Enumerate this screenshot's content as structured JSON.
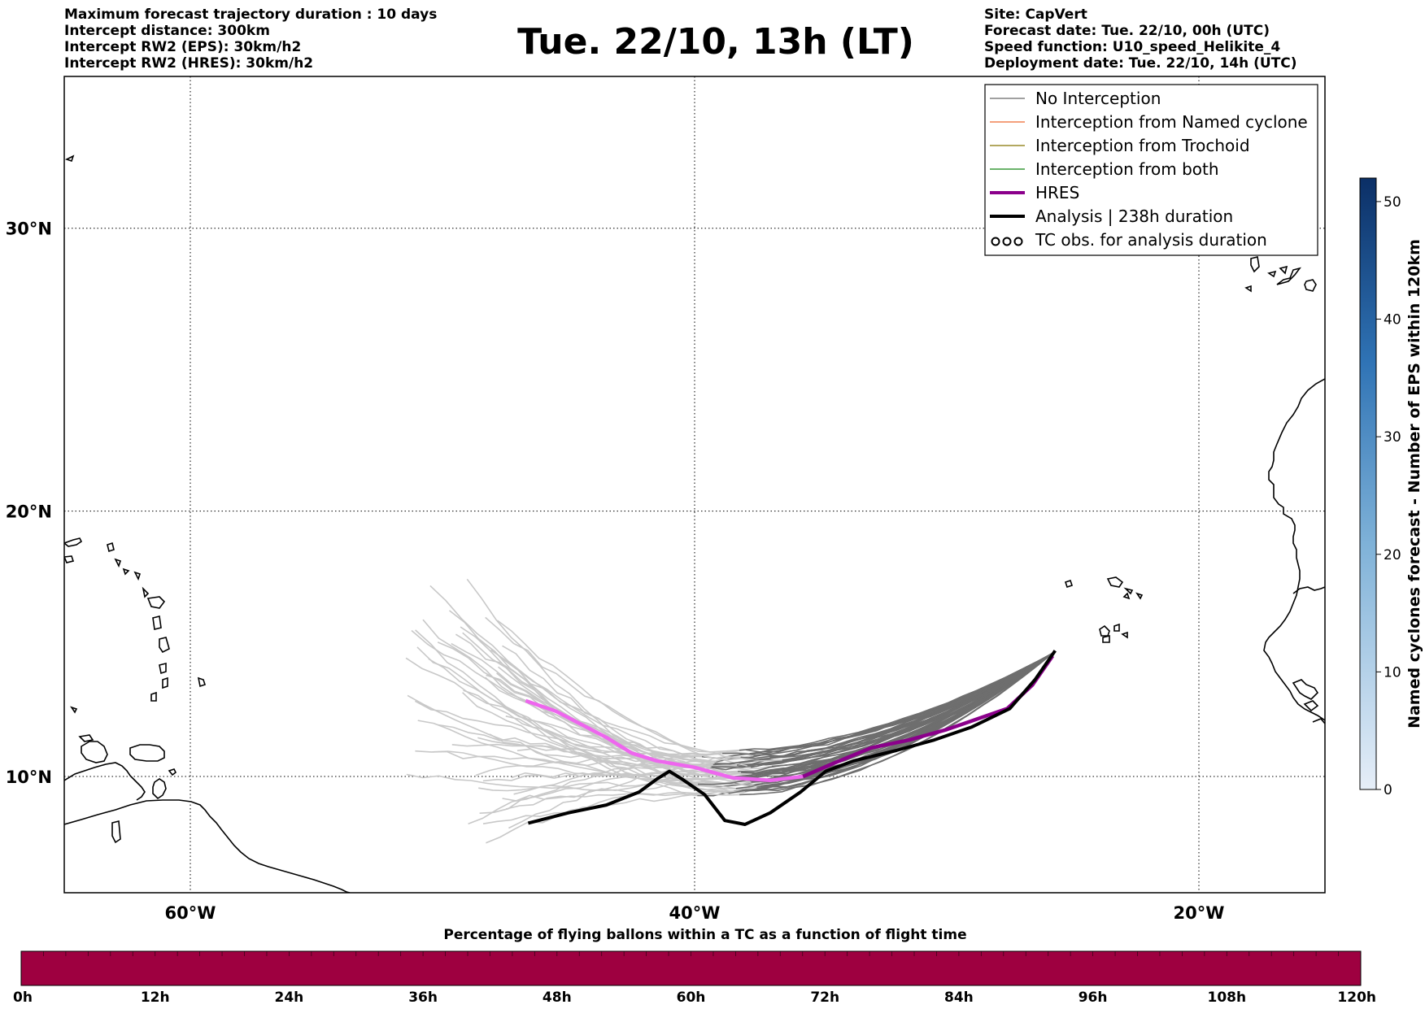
{
  "header": {
    "left_lines": [
      "Maximum forecast trajectory duration : 10 days",
      "Intercept distance: 300km",
      "Intercept RW2 (EPS):  30km/h2",
      "Intercept RW2 (HRES): 30km/h2"
    ],
    "title": "Tue. 22/10, 13h (LT)",
    "right_lines": [
      "Site: CapVert",
      "Forecast date: Tue. 22/10, 00h (UTC)",
      "Speed function: U10_speed_Helikite_4",
      "Deployment date: Tue. 22/10, 14h (UTC)"
    ]
  },
  "map": {
    "lon_range": [
      -65,
      -15
    ],
    "lat_range": [
      5.5,
      35
    ],
    "lat_ticks": [
      {
        "value": 30,
        "label": "30°N"
      },
      {
        "value": 20,
        "label": "20°N"
      },
      {
        "value": 10,
        "label": "10°N"
      }
    ],
    "lon_ticks": [
      {
        "value": -60,
        "label": "60°W"
      },
      {
        "value": -40,
        "label": "40°W"
      },
      {
        "value": -20,
        "label": "20°W"
      }
    ],
    "grid": true,
    "colors": {
      "coast": "#000000",
      "eps_light": "#c8c8c8",
      "eps_dark": "#6e6e6e",
      "hres_early": "#ee66ee",
      "hres_late": "#8b008b",
      "analysis": "#000000"
    }
  },
  "legend": {
    "placement": "top-right",
    "items": [
      {
        "label": "No Interception",
        "color": "#808080",
        "style": "thin"
      },
      {
        "label": "Interception from Named cyclone",
        "color": "#f08050",
        "style": "thin"
      },
      {
        "label": "Interception from Trochoid",
        "color": "#9a8c2c",
        "style": "thin"
      },
      {
        "label": "Interception from both",
        "color": "#3a9a3a",
        "style": "thin"
      },
      {
        "label": "HRES",
        "color": "#8b008b",
        "style": "thick"
      },
      {
        "label": "Analysis | 238h duration",
        "color": "#000000",
        "style": "thick"
      },
      {
        "label": "TC obs. for analysis duration",
        "color": "#000000",
        "style": "symbol"
      }
    ]
  },
  "right_colorbar": {
    "label": "Named cyclones forecast - Number of EPS within 120km",
    "range": [
      0,
      52
    ],
    "ticks": [
      0,
      10,
      20,
      30,
      40,
      50
    ],
    "color_low": "#e6eef8",
    "color_high": "#0b2f66"
  },
  "bottom_colorbar": {
    "title": "Percentage of flying ballons within a TC as a function of flight time",
    "range_hours": [
      0,
      120
    ],
    "ticks": [
      "0h",
      "12h",
      "24h",
      "36h",
      "48h",
      "60h",
      "72h",
      "84h",
      "96h",
      "108h",
      "120h"
    ],
    "fill_color": "#9e0040"
  },
  "tracks": {
    "hres": [
      [
        -25.8,
        14.6
      ],
      [
        -26.6,
        13.5
      ],
      [
        -27.6,
        12.6
      ],
      [
        -28.8,
        12.2
      ],
      [
        -30,
        11.8
      ],
      [
        -31.5,
        11.4
      ],
      [
        -33,
        11.1
      ],
      [
        -34.5,
        10.5
      ],
      [
        -35.7,
        10
      ],
      [
        -37,
        9.85
      ],
      [
        -38.5,
        9.95
      ],
      [
        -40,
        10.35
      ],
      [
        -41.5,
        10.6
      ],
      [
        -42.5,
        10.9
      ],
      [
        -43.5,
        11.5
      ],
      [
        -44.5,
        12
      ],
      [
        -45.5,
        12.5
      ],
      [
        -46.7,
        12.9
      ]
    ],
    "hres_color_split_lon": -35.7,
    "analysis": [
      [
        -25.7,
        14.8
      ],
      [
        -26.5,
        13.7
      ],
      [
        -27.5,
        12.6
      ],
      [
        -29,
        11.9
      ],
      [
        -30.5,
        11.4
      ],
      [
        -32,
        11
      ],
      [
        -33.7,
        10.6
      ],
      [
        -34.8,
        10.2
      ],
      [
        -35.8,
        9.4
      ],
      [
        -37,
        8.6
      ],
      [
        -38,
        8.15
      ],
      [
        -38.8,
        8.3
      ],
      [
        -39.6,
        9.3
      ],
      [
        -40.5,
        9.9
      ],
      [
        -41,
        10.2
      ],
      [
        -41.5,
        9.9
      ],
      [
        -42.2,
        9.4
      ],
      [
        -43.5,
        8.9
      ],
      [
        -45,
        8.6
      ],
      [
        -46.6,
        8.2
      ]
    ]
  }
}
